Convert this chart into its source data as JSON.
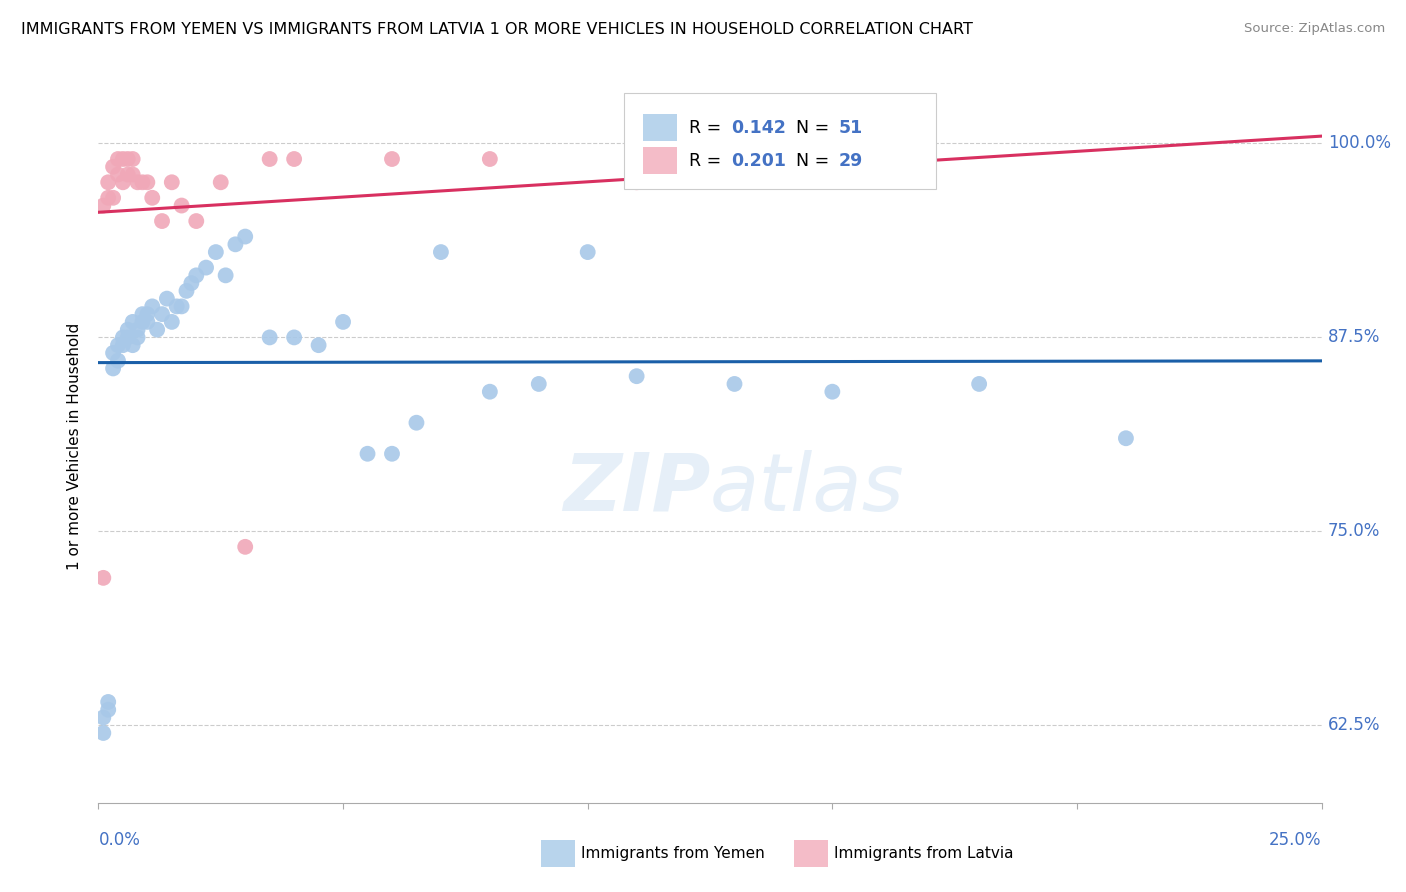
{
  "title": "IMMIGRANTS FROM YEMEN VS IMMIGRANTS FROM LATVIA 1 OR MORE VEHICLES IN HOUSEHOLD CORRELATION CHART",
  "source": "Source: ZipAtlas.com",
  "ylabel": "1 or more Vehicles in Household",
  "ylabel_ticks": [
    "62.5%",
    "75.0%",
    "87.5%",
    "100.0%"
  ],
  "ylabel_tick_vals": [
    0.625,
    0.75,
    0.875,
    1.0
  ],
  "xlim": [
    0.0,
    0.25
  ],
  "ylim": [
    0.575,
    1.035
  ],
  "yemen_color": "#a8c8e8",
  "latvia_color": "#f0a8b8",
  "yemen_line_color": "#1a5fa8",
  "latvia_line_color": "#d83060",
  "legend_yemen_box": "#b8d4ec",
  "legend_latvia_box": "#f4bcc8",
  "R_yemen": 0.142,
  "N_yemen": 51,
  "R_latvia": 0.201,
  "N_latvia": 29,
  "yemen_x": [
    0.001,
    0.001,
    0.002,
    0.002,
    0.003,
    0.003,
    0.004,
    0.004,
    0.005,
    0.005,
    0.006,
    0.006,
    0.007,
    0.007,
    0.008,
    0.008,
    0.009,
    0.009,
    0.01,
    0.01,
    0.011,
    0.012,
    0.013,
    0.014,
    0.015,
    0.016,
    0.017,
    0.018,
    0.019,
    0.02,
    0.022,
    0.024,
    0.026,
    0.028,
    0.03,
    0.035,
    0.04,
    0.045,
    0.05,
    0.055,
    0.06,
    0.065,
    0.07,
    0.08,
    0.09,
    0.1,
    0.11,
    0.13,
    0.15,
    0.18,
    0.21
  ],
  "yemen_y": [
    0.63,
    0.62,
    0.64,
    0.635,
    0.855,
    0.865,
    0.87,
    0.86,
    0.87,
    0.875,
    0.875,
    0.88,
    0.87,
    0.885,
    0.88,
    0.875,
    0.885,
    0.89,
    0.89,
    0.885,
    0.895,
    0.88,
    0.89,
    0.9,
    0.885,
    0.895,
    0.895,
    0.905,
    0.91,
    0.915,
    0.92,
    0.93,
    0.915,
    0.935,
    0.94,
    0.875,
    0.875,
    0.87,
    0.885,
    0.8,
    0.8,
    0.82,
    0.93,
    0.84,
    0.845,
    0.93,
    0.85,
    0.845,
    0.84,
    0.845,
    0.81
  ],
  "latvia_x": [
    0.001,
    0.001,
    0.002,
    0.002,
    0.003,
    0.003,
    0.004,
    0.004,
    0.005,
    0.005,
    0.006,
    0.006,
    0.007,
    0.007,
    0.008,
    0.009,
    0.01,
    0.011,
    0.013,
    0.015,
    0.017,
    0.02,
    0.025,
    0.03,
    0.035,
    0.04,
    0.06,
    0.08,
    0.11
  ],
  "latvia_y": [
    0.72,
    0.96,
    0.965,
    0.975,
    0.965,
    0.985,
    0.98,
    0.99,
    0.975,
    0.99,
    0.98,
    0.99,
    0.98,
    0.99,
    0.975,
    0.975,
    0.975,
    0.965,
    0.95,
    0.975,
    0.96,
    0.95,
    0.975,
    0.74,
    0.99,
    0.99,
    0.99,
    0.99,
    0.975
  ]
}
